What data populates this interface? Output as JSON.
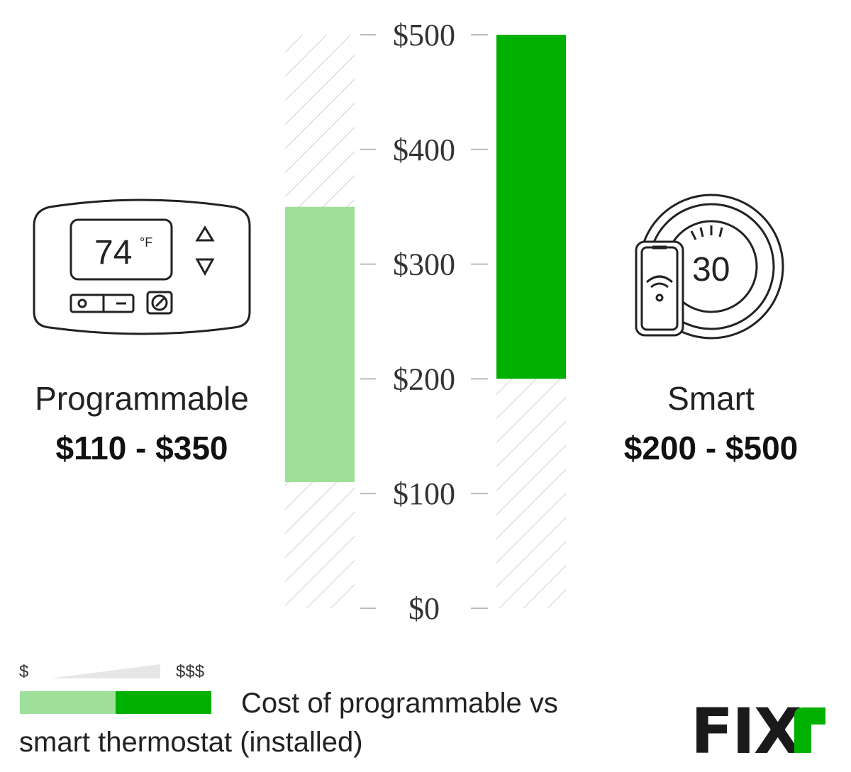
{
  "chart_data": {
    "type": "bar",
    "subtype": "floating-range",
    "categories": [
      "Programmable",
      "Smart"
    ],
    "series": [
      {
        "ranges": [
          [
            110,
            350
          ],
          [
            200,
            500
          ]
        ],
        "colors": [
          "#9ee09a",
          "#00b000"
        ]
      }
    ],
    "range_labels": [
      "$110 - $350",
      "$200 - $500"
    ],
    "ylim": [
      0,
      500
    ],
    "yticks": [
      0,
      100,
      200,
      300,
      400,
      500
    ],
    "ytick_labels": [
      "$0",
      "$100",
      "$200",
      "$300",
      "$400",
      "$500"
    ],
    "grid": false,
    "legend": {
      "low_label": "$",
      "high_label": "$$$",
      "colors": [
        "#9ee09a",
        "#00b000"
      ]
    },
    "caption": "Cost of programmable vs smart thermostat (installed)"
  },
  "icons": {
    "programmable": {
      "name": "programmable-thermostat-icon",
      "display_temp": "74",
      "unit": "°F"
    },
    "smart": {
      "name": "smart-thermostat-phone-icon",
      "display_value": "30"
    }
  },
  "brand": {
    "logo_text": "FIXR",
    "logo_color": "#1a1a1a",
    "accent": "#00b000"
  },
  "caption_lines": [
    "Cost of programmable vs",
    "smart thermostat (installed)"
  ]
}
